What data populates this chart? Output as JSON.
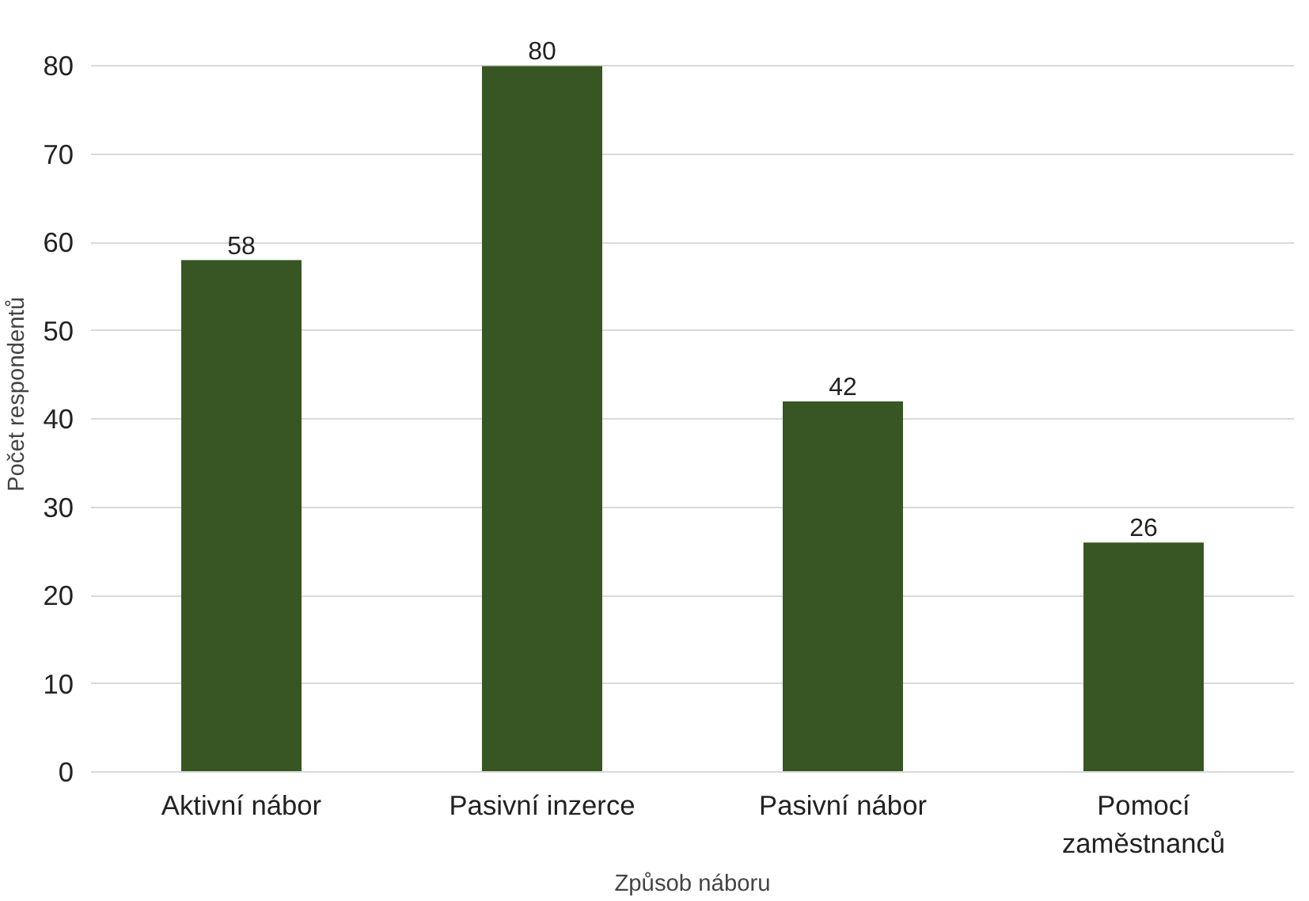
{
  "chart_data": {
    "type": "bar",
    "xlabel": "Způsob náboru",
    "ylabel": "Počet respondentů",
    "categories": [
      "Aktivní nábor",
      "Pasivní inzerce",
      "Pasivní nábor",
      "Pomocí zaměstnanců"
    ],
    "values": [
      58,
      80,
      42,
      26
    ],
    "color": "#375623",
    "ylim": [
      0,
      80
    ],
    "yticks": [
      0,
      10,
      20,
      30,
      40,
      50,
      60,
      70,
      80
    ],
    "grid": "y",
    "data_labels": true
  }
}
